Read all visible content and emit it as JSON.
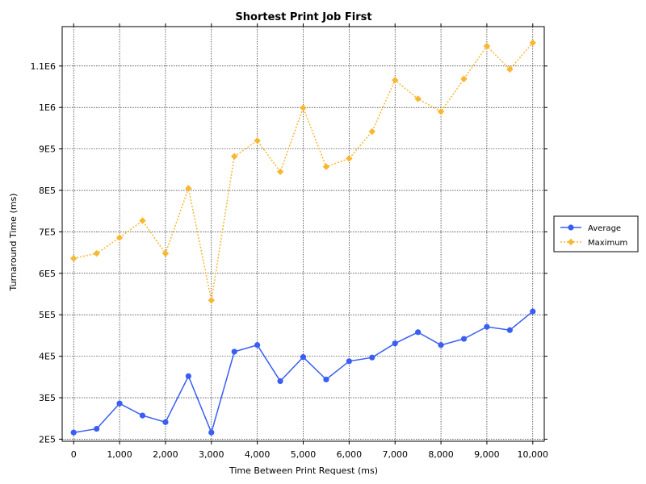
{
  "chart_data": {
    "type": "line",
    "title": "Shortest Print Job First",
    "xlabel": "Time Between Print Request (ms)",
    "ylabel": "Turnaround Time (ms)",
    "x": [
      0,
      500,
      1000,
      1500,
      2000,
      2500,
      3000,
      3500,
      4000,
      4500,
      5000,
      5500,
      6000,
      6500,
      7000,
      7500,
      8000,
      8500,
      9000,
      9500,
      10000
    ],
    "xlim": [
      -250,
      10250
    ],
    "ylim": [
      195000,
      1195000
    ],
    "xticks": [
      0,
      1000,
      2000,
      3000,
      4000,
      5000,
      6000,
      7000,
      8000,
      9000,
      10000
    ],
    "xtick_labels": [
      "0",
      "1,000",
      "2,000",
      "3,000",
      "4,000",
      "5,000",
      "6,000",
      "7,000",
      "8,000",
      "9,000",
      "10,000"
    ],
    "yticks": [
      200000,
      300000,
      400000,
      500000,
      600000,
      700000,
      800000,
      900000,
      1000000,
      1100000
    ],
    "ytick_labels": [
      "2E5",
      "3E5",
      "4E5",
      "5E5",
      "6E5",
      "7E5",
      "8E5",
      "9E5",
      "1E6",
      "1.1E6"
    ],
    "grid": true,
    "legend_position": "right",
    "series": [
      {
        "name": "Average",
        "color": "#3a5ef5",
        "marker": "circle",
        "line": "solid",
        "values": [
          216000,
          225000,
          286000,
          257000,
          241000,
          352000,
          216000,
          411000,
          427000,
          340000,
          398000,
          344000,
          388000,
          397000,
          431000,
          458000,
          427000,
          442000,
          471000,
          463000,
          508000
        ]
      },
      {
        "name": "Maximum",
        "color": "#f7b731",
        "marker": "diamond",
        "line": "dotted",
        "values": [
          636000,
          648000,
          686000,
          727000,
          648000,
          805000,
          535000,
          882000,
          920000,
          845000,
          999000,
          857000,
          877000,
          942000,
          1066000,
          1021000,
          990000,
          1069000,
          1148000,
          1092000,
          1156000
        ]
      }
    ]
  }
}
